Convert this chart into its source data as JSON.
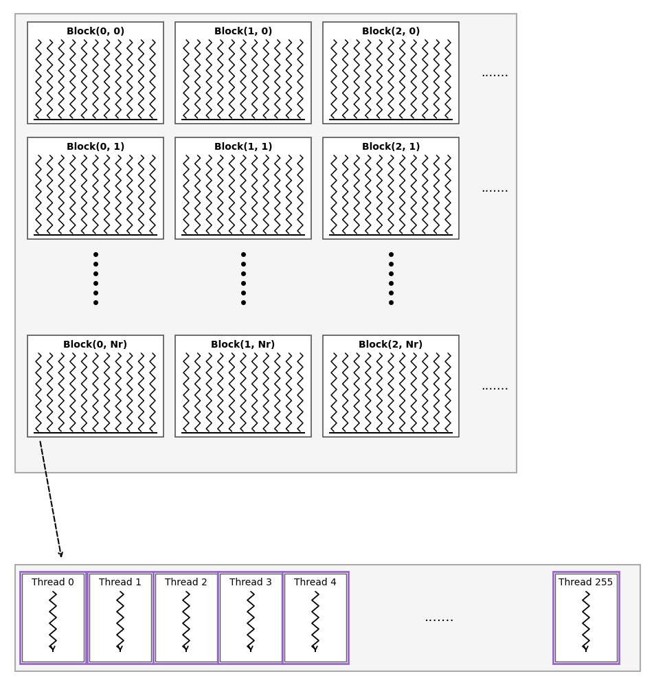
{
  "background_color": "#ffffff",
  "block_labels": [
    [
      "Block(0, 0)",
      "Block(1, 0)",
      "Block(2, 0)"
    ],
    [
      "Block(0, 1)",
      "Block(1, 1)",
      "Block(2, 1)"
    ],
    [
      "Block(0, Nr)",
      "Block(1, Nr)",
      "Block(2, Nr)"
    ]
  ],
  "thread_labels": [
    "Thread 0",
    "Thread 1",
    "Thread 2",
    "Thread 3",
    "Thread 4",
    "Thread 255"
  ],
  "dots_text": ".......",
  "vdots_char": ".",
  "label_fontsize": 10,
  "thread_label_fontsize": 10,
  "outer_box_edge": "#aaaaaa",
  "outer_box_face": "#f5f5f5",
  "block_edge": "#555555",
  "thread_outer_edge": "#9966cc",
  "thread_inner_edge": "#555555"
}
